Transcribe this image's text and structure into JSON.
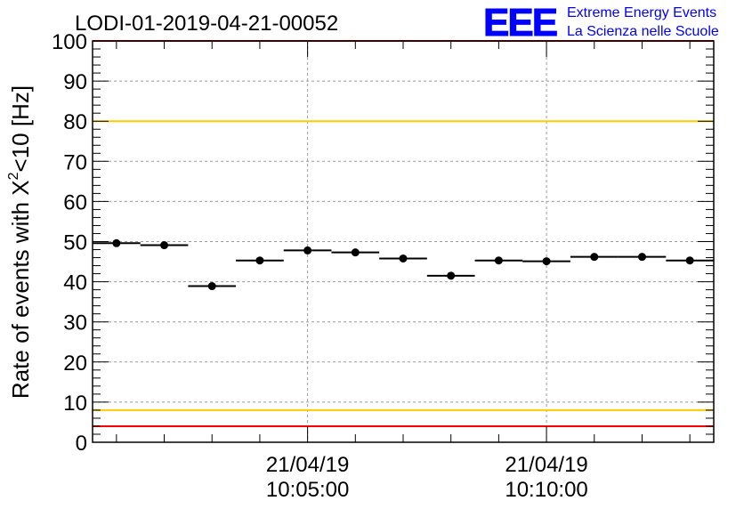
{
  "header": {
    "title": "LODI-01-2019-04-21-00052",
    "logo_text": "EEE",
    "logo_line1": "Extreme Energy Events",
    "logo_line2": "La Scienza nelle Scuole"
  },
  "chart_data": {
    "type": "scatter",
    "title": "LODI-01-2019-04-21-00052",
    "xlabel": "",
    "ylabel_parts": [
      "Rate of events with X",
      "2",
      "<10 [Hz]"
    ],
    "ylim": [
      0,
      100
    ],
    "y_ticks": [
      "0",
      "10",
      "20",
      "30",
      "40",
      "50",
      "60",
      "70",
      "80",
      "90",
      "100"
    ],
    "x_ticks": [
      {
        "date": "21/04/19",
        "time": "10:05:00",
        "minute": 5.0
      },
      {
        "date": "21/04/19",
        "time": "10:10:00",
        "minute": 10.0
      }
    ],
    "xlim_minutes_after_10h": [
      0.5,
      13.5
    ],
    "grid": true,
    "bin_width_minutes": 1.0,
    "points": [
      {
        "t": 1.0,
        "y": 49.6
      },
      {
        "t": 2.0,
        "y": 49.1
      },
      {
        "t": 3.0,
        "y": 38.9
      },
      {
        "t": 4.0,
        "y": 45.3
      },
      {
        "t": 5.0,
        "y": 47.8
      },
      {
        "t": 6.0,
        "y": 47.3
      },
      {
        "t": 7.0,
        "y": 45.8
      },
      {
        "t": 8.0,
        "y": 41.5
      },
      {
        "t": 9.0,
        "y": 45.3
      },
      {
        "t": 10.0,
        "y": 45.1
      },
      {
        "t": 11.0,
        "y": 46.2
      },
      {
        "t": 12.0,
        "y": 46.2
      },
      {
        "t": 13.0,
        "y": 45.3
      }
    ],
    "reference_lines": [
      {
        "y": 100,
        "color": "#ff0000"
      },
      {
        "y": 80,
        "color": "#ffcc00"
      },
      {
        "y": 8,
        "color": "#ffcc00"
      },
      {
        "y": 4,
        "color": "#ff0000"
      }
    ],
    "colors": {
      "marker": "#000000",
      "logo": "#0000ff",
      "grid": "#9a9a9a"
    }
  }
}
